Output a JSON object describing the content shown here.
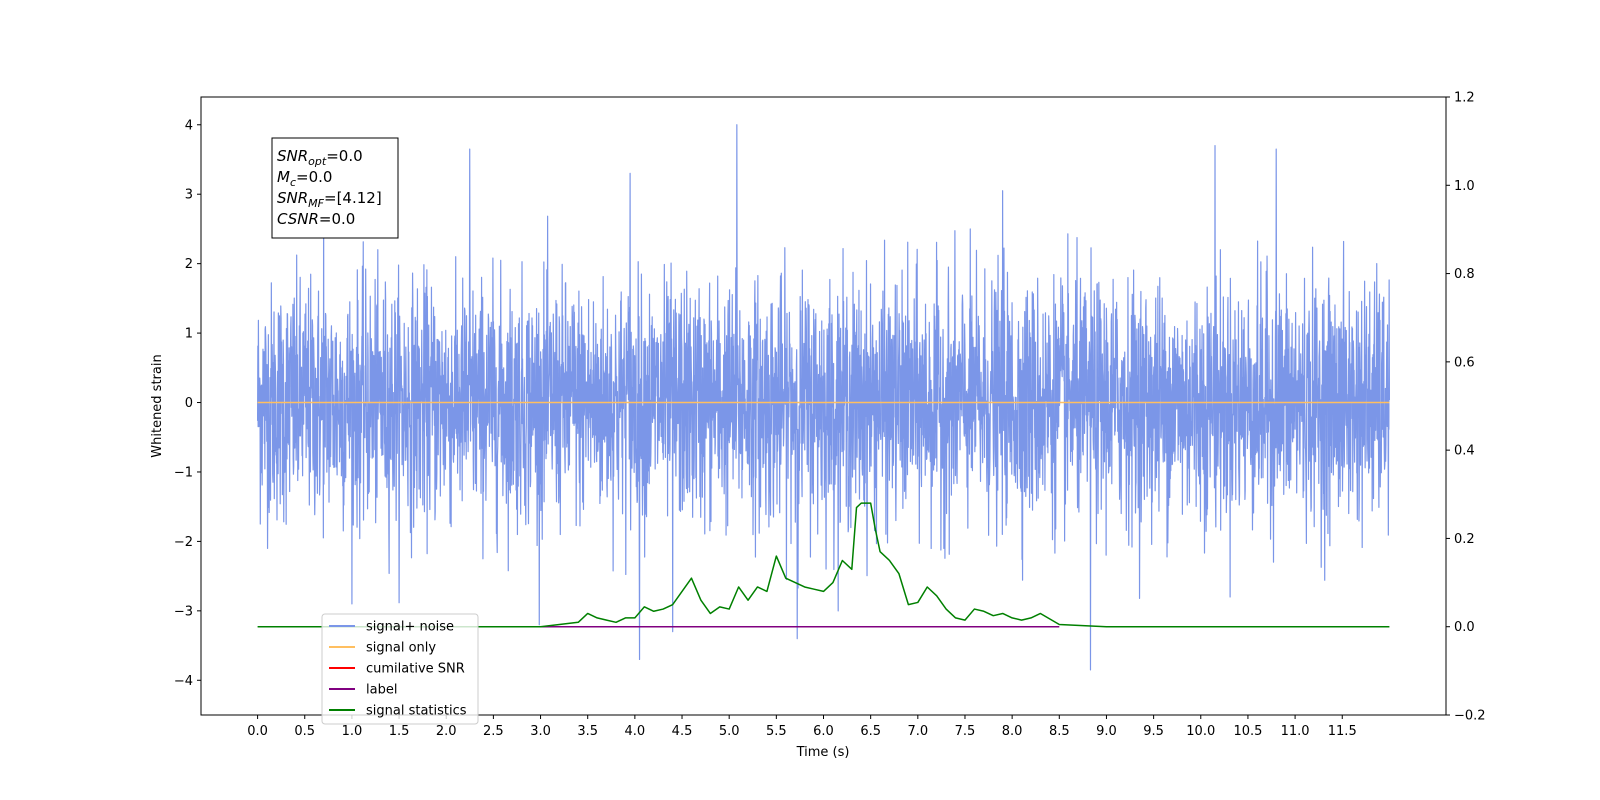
{
  "chart_data": {
    "type": "line",
    "xlabel": "Time (s)",
    "ylabel": "Whitened strain",
    "xlim": [
      -0.6,
      12.6
    ],
    "ylim": [
      -4.5,
      4.4
    ],
    "y2lim": [
      -0.2,
      1.2
    ],
    "x_ticks": [
      "0.0",
      "0.5",
      "1.0",
      "1.5",
      "2.0",
      "2.5",
      "3.0",
      "3.5",
      "4.0",
      "4.5",
      "5.0",
      "5.5",
      "6.0",
      "6.5",
      "7.0",
      "7.5",
      "8.0",
      "8.5",
      "9.0",
      "9.5",
      "10.0",
      "10.5",
      "11.0",
      "11.5"
    ],
    "y_ticks": [
      "4",
      "3",
      "2",
      "1",
      "0",
      "−1",
      "−2",
      "−3",
      "−4"
    ],
    "y2_ticks": [
      "1.2",
      "1.0",
      "0.8",
      "0.6",
      "0.4",
      "0.2",
      "0.0",
      "−0.2"
    ],
    "legend_position": "lower-left",
    "grid": false,
    "annotation": {
      "lines": [
        {
          "base": "SNR",
          "sub": "opt",
          "rest": "=0.0"
        },
        {
          "base": "M",
          "sub": "c",
          "rest": "=0.0"
        },
        {
          "base": "SNR",
          "sub": "MF",
          "rest": "=[4.12]"
        },
        {
          "base": "CSNR",
          "sub": "",
          "rest": "=0.0"
        }
      ]
    },
    "series": [
      {
        "name": "signal+ noise",
        "color": "#7b96e8",
        "axis": "left",
        "x_range": [
          0.0,
          12.0
        ],
        "envelope_high": [
          2.1,
          2.4,
          2.3,
          2.5,
          2.6,
          2.2,
          3.6,
          2.2,
          2.1,
          2.3,
          2.3,
          3.3,
          2.8,
          3.3,
          3.0,
          4.0,
          2.6,
          2.4,
          2.8,
          2.7,
          3.1,
          2.6,
          2.4,
          2.5,
          3.1,
          2.5,
          2.7,
          2.8,
          2.9,
          2.7,
          2.5,
          3.4,
          2.3,
          2.7,
          3.1,
          2.5,
          2.6,
          2.5,
          2.4,
          3.6,
          2.2,
          2.6,
          3.5,
          2.6,
          2.7,
          2.4,
          3.0,
          2.0
        ],
        "envelope_low": [
          -2.1,
          -2.4,
          -2.4,
          -2.9,
          -2.9,
          -2.8,
          -3.1,
          -2.9,
          -3.2,
          -2.6,
          -2.9,
          -3.2,
          -2.9,
          -2.5,
          -2.7,
          -3.0,
          -3.3,
          -3.4,
          -3.0,
          -3.2,
          -2.9,
          -3.3,
          -3.4,
          -2.6,
          -3.0,
          -2.6,
          -2.9,
          -2.5,
          -3.2,
          -3.2,
          -2.7,
          -2.8,
          -2.9,
          -3.1,
          -3.3,
          -3.0,
          -3.3,
          -3.1,
          -3.5,
          -2.8,
          -3.2,
          -2.8,
          -3.3,
          -3.2,
          -2.9,
          -2.6,
          -2.8,
          -2.0
        ],
        "spikes": [
          [
            0.7,
            3.0
          ],
          [
            2.25,
            3.65
          ],
          [
            3.95,
            3.3
          ],
          [
            4.05,
            -3.7
          ],
          [
            4.4,
            -3.3
          ],
          [
            5.08,
            4.0
          ],
          [
            5.72,
            -3.4
          ],
          [
            7.9,
            3.05
          ],
          [
            8.83,
            -3.85
          ],
          [
            10.15,
            3.7
          ],
          [
            10.8,
            3.65
          ]
        ]
      },
      {
        "name": "signal only",
        "color": "#ffbf60",
        "axis": "left",
        "x": [
          0.0,
          12.0
        ],
        "y": [
          0.0,
          0.0
        ]
      },
      {
        "name": "cumilative SNR",
        "color": "#ff0000",
        "axis": "left",
        "x": [],
        "y": []
      },
      {
        "name": "label",
        "color": "#800080",
        "axis": "right",
        "x": [
          3.0,
          8.5
        ],
        "y": [
          0.0,
          0.0
        ]
      },
      {
        "name": "signal statistics",
        "color": "#008000",
        "axis": "right",
        "x": [
          0.0,
          3.0,
          3.2,
          3.4,
          3.5,
          3.6,
          3.7,
          3.8,
          3.9,
          4.0,
          4.1,
          4.2,
          4.3,
          4.4,
          4.5,
          4.6,
          4.7,
          4.8,
          4.9,
          5.0,
          5.1,
          5.2,
          5.3,
          5.4,
          5.5,
          5.6,
          5.7,
          5.8,
          5.9,
          6.0,
          6.1,
          6.2,
          6.3,
          6.35,
          6.4,
          6.5,
          6.55,
          6.6,
          6.7,
          6.8,
          6.9,
          7.0,
          7.1,
          7.2,
          7.3,
          7.4,
          7.5,
          7.6,
          7.7,
          7.8,
          7.9,
          8.0,
          8.1,
          8.2,
          8.3,
          8.5,
          9.0,
          12.0
        ],
        "y": [
          0.0,
          0.0,
          0.005,
          0.01,
          0.03,
          0.02,
          0.015,
          0.01,
          0.02,
          0.02,
          0.045,
          0.035,
          0.04,
          0.05,
          0.08,
          0.11,
          0.06,
          0.03,
          0.045,
          0.04,
          0.09,
          0.06,
          0.09,
          0.08,
          0.16,
          0.11,
          0.1,
          0.09,
          0.085,
          0.08,
          0.1,
          0.15,
          0.13,
          0.27,
          0.28,
          0.28,
          0.22,
          0.17,
          0.15,
          0.12,
          0.05,
          0.055,
          0.09,
          0.07,
          0.04,
          0.02,
          0.015,
          0.04,
          0.035,
          0.025,
          0.03,
          0.02,
          0.015,
          0.02,
          0.03,
          0.005,
          0.0,
          0.0
        ]
      }
    ]
  }
}
